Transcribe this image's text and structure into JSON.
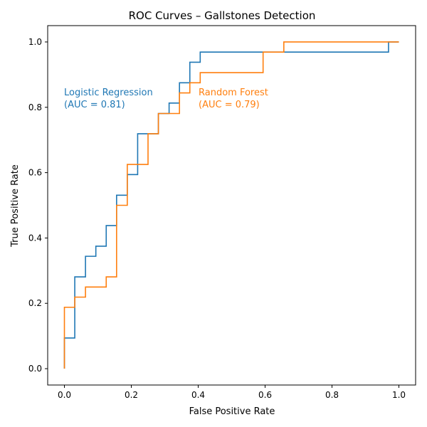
{
  "chart_data": {
    "type": "line",
    "title": "ROC Curves – Gallstones Detection",
    "xlabel": "False Positive Rate",
    "ylabel": "True Positive Rate",
    "xlim": [
      -0.05,
      1.05
    ],
    "ylim": [
      -0.05,
      1.05
    ],
    "xticks": [
      "0.0",
      "0.2",
      "0.4",
      "0.6",
      "0.8",
      "1.0"
    ],
    "yticks": [
      "0.0",
      "0.2",
      "0.4",
      "0.6",
      "0.8",
      "1.0"
    ],
    "grid": false,
    "series": [
      {
        "name": "Logistic Regression",
        "auc_label": "(AUC = 0.81)",
        "color": "#1f77b4",
        "step": "post",
        "points": [
          [
            0.0,
            0.0
          ],
          [
            0.0,
            0.094
          ],
          [
            0.031,
            0.094
          ],
          [
            0.031,
            0.281
          ],
          [
            0.063,
            0.281
          ],
          [
            0.063,
            0.344
          ],
          [
            0.094,
            0.344
          ],
          [
            0.094,
            0.375
          ],
          [
            0.125,
            0.375
          ],
          [
            0.125,
            0.438
          ],
          [
            0.156,
            0.438
          ],
          [
            0.156,
            0.531
          ],
          [
            0.188,
            0.531
          ],
          [
            0.188,
            0.594
          ],
          [
            0.219,
            0.594
          ],
          [
            0.219,
            0.719
          ],
          [
            0.25,
            0.719
          ],
          [
            0.25,
            0.719
          ],
          [
            0.281,
            0.719
          ],
          [
            0.281,
            0.781
          ],
          [
            0.313,
            0.781
          ],
          [
            0.313,
            0.813
          ],
          [
            0.344,
            0.813
          ],
          [
            0.344,
            0.875
          ],
          [
            0.375,
            0.875
          ],
          [
            0.375,
            0.938
          ],
          [
            0.406,
            0.938
          ],
          [
            0.406,
            0.969
          ],
          [
            0.969,
            0.969
          ],
          [
            0.969,
            1.0
          ],
          [
            1.0,
            1.0
          ]
        ]
      },
      {
        "name": "Random Forest",
        "auc_label": "(AUC = 0.79)",
        "color": "#ff7f0e",
        "step": "post",
        "points": [
          [
            0.0,
            0.0
          ],
          [
            0.0,
            0.188
          ],
          [
            0.031,
            0.188
          ],
          [
            0.031,
            0.219
          ],
          [
            0.063,
            0.219
          ],
          [
            0.063,
            0.25
          ],
          [
            0.125,
            0.25
          ],
          [
            0.125,
            0.281
          ],
          [
            0.156,
            0.281
          ],
          [
            0.156,
            0.5
          ],
          [
            0.188,
            0.5
          ],
          [
            0.188,
            0.625
          ],
          [
            0.25,
            0.625
          ],
          [
            0.25,
            0.719
          ],
          [
            0.281,
            0.719
          ],
          [
            0.281,
            0.781
          ],
          [
            0.344,
            0.781
          ],
          [
            0.344,
            0.844
          ],
          [
            0.375,
            0.844
          ],
          [
            0.375,
            0.875
          ],
          [
            0.406,
            0.875
          ],
          [
            0.406,
            0.906
          ],
          [
            0.594,
            0.906
          ],
          [
            0.594,
            0.969
          ],
          [
            0.656,
            0.969
          ],
          [
            0.656,
            1.0
          ],
          [
            1.0,
            1.0
          ]
        ]
      }
    ]
  }
}
